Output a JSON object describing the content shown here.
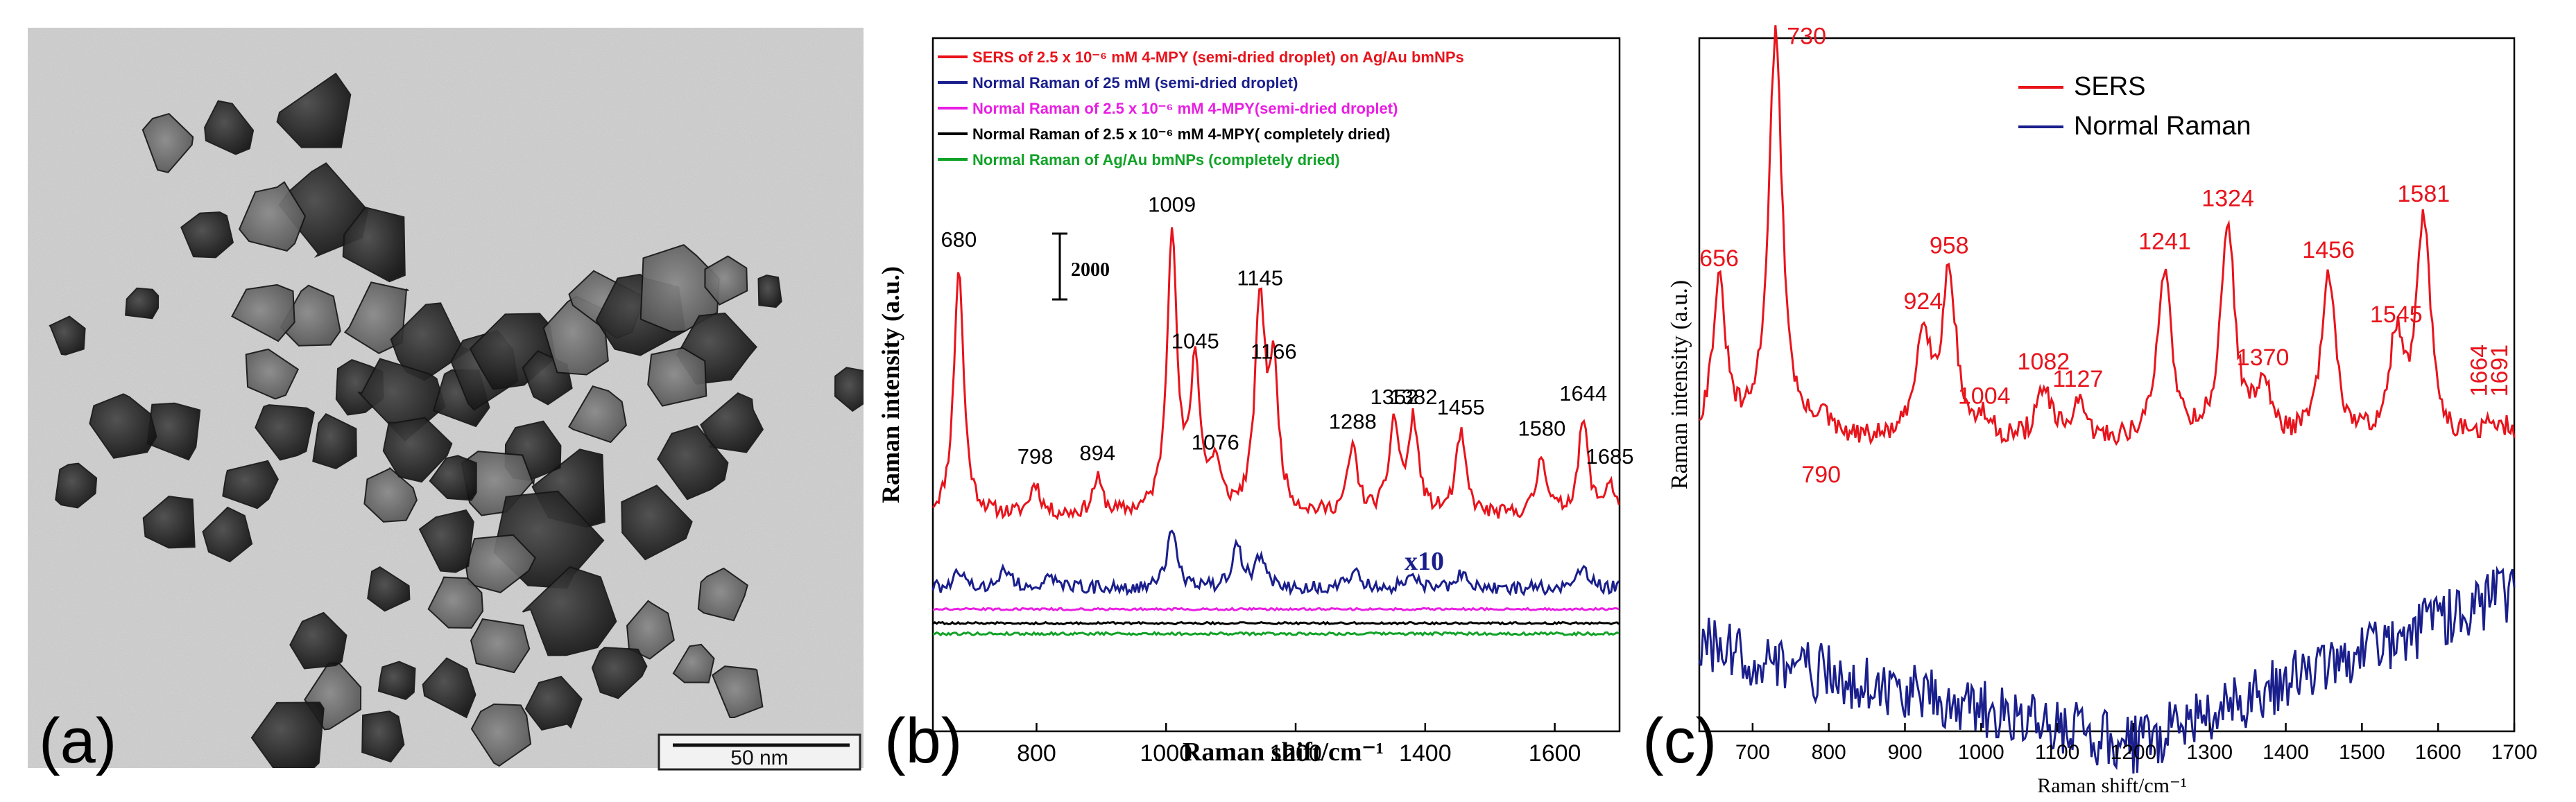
{
  "panel_a": {
    "label": "(a)",
    "scale_bar_text": "50 nm"
  },
  "chart_data": [
    {
      "panel": "(b)",
      "type": "line",
      "xlabel": "Raman shift/cm⁻¹",
      "ylabel": "Raman intensity (a.u.)",
      "xlim": [
        640,
        1700
      ],
      "xticks": [
        800,
        1000,
        1200,
        1400,
        1600
      ],
      "scale_bar_label": "2000",
      "multiplier_label": "x10",
      "legend": [
        {
          "text": "SERS of 2.5 x 10⁻⁶ mM 4-MPY (semi-dried droplet) on Ag/Au bmNPs",
          "color": "#e8141c"
        },
        {
          "text": "Normal Raman of 25 mM (semi-dried droplet)",
          "color": "#1a1f8c"
        },
        {
          "text": "Normal Raman of 2.5 x 10⁻⁶ mM 4-MPY(semi-dried droplet)",
          "color": "#e91ee3"
        },
        {
          "text": "Normal Raman of 2.5 x 10⁻⁶ mM 4-MPY( completely dried)",
          "color": "#000000"
        },
        {
          "text": "Normal Raman of  Ag/Au bmNPs (completely dried)",
          "color": "#11a227"
        }
      ],
      "series": [
        {
          "name": "SERS 4-MPY on Ag/Au bmNPs",
          "color": "#e8141c",
          "baseline": 0,
          "background": [
            [
              640,
              0
            ],
            [
              1700,
              0
            ]
          ],
          "peaks": [
            [
              680,
              7100
            ],
            [
              798,
              900
            ],
            [
              894,
              1000
            ],
            [
              1009,
              8100
            ],
            [
              1045,
              4200
            ],
            [
              1076,
              1300
            ],
            [
              1145,
              6000
            ],
            [
              1166,
              3900
            ],
            [
              1288,
              1900
            ],
            [
              1352,
              2600
            ],
            [
              1382,
              2600
            ],
            [
              1455,
              2300
            ],
            [
              1580,
              1700
            ],
            [
              1644,
              2700
            ],
            [
              1685,
              900
            ]
          ]
        },
        {
          "name": "Normal Raman 25 mM (x10)",
          "color": "#1a1f8c",
          "baseline": -2050,
          "background": [
            [
              640,
              0
            ],
            [
              1700,
              0
            ]
          ],
          "peaks": [
            [
              680,
              400
            ],
            [
              750,
              600
            ],
            [
              820,
              400
            ],
            [
              1009,
              1600
            ],
            [
              1110,
              1200
            ],
            [
              1145,
              900
            ],
            [
              1290,
              500
            ],
            [
              1380,
              500
            ],
            [
              1455,
              400
            ],
            [
              1644,
              700
            ]
          ]
        },
        {
          "name": "Normal Raman 2.5e-6 mM semi-dried",
          "color": "#e91ee3",
          "baseline": -2650,
          "background": [
            [
              640,
              0
            ],
            [
              1700,
              0
            ]
          ],
          "peaks": []
        },
        {
          "name": "Normal Raman 2.5e-6 mM completely dried",
          "color": "#000000",
          "baseline": -3050,
          "background": [
            [
              640,
              0
            ],
            [
              1700,
              0
            ]
          ],
          "peaks": []
        },
        {
          "name": "Normal Raman Ag/Au bmNPs",
          "color": "#11a227",
          "baseline": -3350,
          "background": [
            [
              640,
              0
            ],
            [
              1700,
              0
            ]
          ],
          "peaks": []
        }
      ],
      "peak_labels": [
        {
          "x": 680,
          "text": "680"
        },
        {
          "x": 798,
          "text": "798"
        },
        {
          "x": 894,
          "text": "894"
        },
        {
          "x": 1009,
          "text": "1009"
        },
        {
          "x": 1045,
          "text": "1045"
        },
        {
          "x": 1076,
          "text": "1076"
        },
        {
          "x": 1145,
          "text": "1145"
        },
        {
          "x": 1166,
          "text": "1166"
        },
        {
          "x": 1288,
          "text": "1288"
        },
        {
          "x": 1352,
          "text": "1352"
        },
        {
          "x": 1382,
          "text": "1382"
        },
        {
          "x": 1455,
          "text": "1455"
        },
        {
          "x": 1580,
          "text": "1580"
        },
        {
          "x": 1644,
          "text": "1644"
        },
        {
          "x": 1685,
          "text": "1685"
        }
      ]
    },
    {
      "panel": "(c)",
      "type": "line",
      "xlabel": "Raman shift/cm⁻¹",
      "ylabel": "Raman intensity (a.u.)",
      "xlim": [
        630,
        1700
      ],
      "xticks": [
        700,
        800,
        900,
        1000,
        1100,
        1200,
        1300,
        1400,
        1500,
        1600,
        1700
      ],
      "legend": [
        {
          "text": "SERS",
          "color": "#e8141c"
        },
        {
          "text": "Normal Raman",
          "color": "#1a1f8c"
        }
      ],
      "series": [
        {
          "name": "SERS",
          "color": "#e8141c",
          "baseline": 0,
          "background": [
            [
              630,
              0
            ],
            [
              1700,
              0
            ]
          ],
          "peaks": [
            [
              656,
              3600
            ],
            [
              730,
              9400
            ],
            [
              790,
              500
            ],
            [
              924,
              2600
            ],
            [
              958,
              3900
            ],
            [
              1004,
              400
            ],
            [
              1082,
              1200
            ],
            [
              1127,
              800
            ],
            [
              1241,
              4000
            ],
            [
              1324,
              5000
            ],
            [
              1370,
              1300
            ],
            [
              1456,
              3800
            ],
            [
              1545,
              2300
            ],
            [
              1581,
              5100
            ],
            [
              1664,
              300
            ],
            [
              1691,
              300
            ]
          ]
        },
        {
          "name": "Normal Raman",
          "color": "#1a1f8c",
          "baseline": -4700,
          "background": [
            [
              630,
              0
            ],
            [
              1200,
              -2300
            ],
            [
              1300,
              -1600
            ],
            [
              1700,
              1300
            ]
          ],
          "peaks": []
        }
      ],
      "peak_labels": [
        {
          "x": 656,
          "text": "656"
        },
        {
          "x": 730,
          "text": "730"
        },
        {
          "x": 790,
          "text": "790"
        },
        {
          "x": 924,
          "text": "924"
        },
        {
          "x": 958,
          "text": "958"
        },
        {
          "x": 1004,
          "text": "1004"
        },
        {
          "x": 1082,
          "text": "1082"
        },
        {
          "x": 1127,
          "text": "1127"
        },
        {
          "x": 1241,
          "text": "1241"
        },
        {
          "x": 1324,
          "text": "1324"
        },
        {
          "x": 1370,
          "text": "1370"
        },
        {
          "x": 1456,
          "text": "1456"
        },
        {
          "x": 1545,
          "text": "1545"
        },
        {
          "x": 1581,
          "text": "1581"
        },
        {
          "x": 1664,
          "text": "1664"
        },
        {
          "x": 1691,
          "text": "1691"
        }
      ]
    }
  ]
}
